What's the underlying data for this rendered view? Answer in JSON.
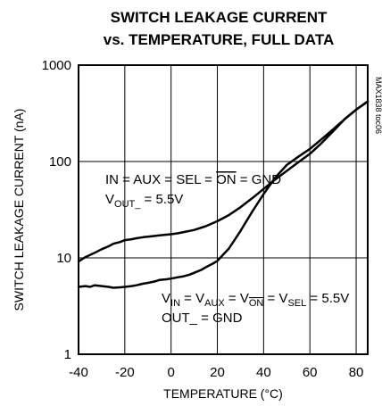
{
  "chart_data": {
    "type": "line",
    "title_line1": "SWITCH LEAKAGE CURRENT",
    "title_line2": "vs. TEMPERATURE, FULL DATA",
    "xlabel": "TEMPERATURE (°C)",
    "ylabel": "SWITCH LEAKAGE CURRENT (nA)",
    "xlim": [
      -40,
      85
    ],
    "ylim": [
      1,
      1000
    ],
    "y_scale": "log",
    "x_ticks": [
      -40,
      -20,
      0,
      20,
      40,
      60,
      80
    ],
    "y_ticks": [
      1,
      10,
      100,
      1000
    ],
    "grid": true,
    "side_label": "MAX1838 toc06",
    "annotations": {
      "upper_line1": "IN = AUX = SEL = ON = GND",
      "upper_line1_overlined": "ON",
      "upper_line2_main": "V",
      "upper_line2_sub": "OUT_",
      "upper_line2_rest": " = 5.5V",
      "lower_line1_parts": [
        {
          "t": "V",
          "sub": "IN"
        },
        {
          "t": " = V",
          "sub": "AUX"
        },
        {
          "t": " = V",
          "sub": "ON",
          "overline": true
        },
        {
          "t": " = V",
          "sub": "SEL"
        },
        {
          "t": " = 5.5V"
        }
      ],
      "lower_line2": "OUT_ = GND"
    },
    "series": [
      {
        "x": [
          -40,
          -37,
          -33,
          -30,
          -27,
          -25,
          -22,
          -20,
          -17,
          -15,
          -12,
          -10,
          -7,
          -5,
          -2,
          0,
          3,
          5,
          10,
          15,
          20,
          25,
          30,
          35,
          40,
          45,
          50,
          55,
          60,
          65,
          70,
          75,
          80,
          85
        ],
        "y": [
          9.2,
          10.2,
          11.3,
          12.3,
          13.2,
          14.0,
          14.6,
          15.3,
          15.6,
          16.0,
          16.4,
          16.6,
          16.9,
          17.1,
          17.4,
          17.6,
          18.0,
          18.4,
          19.5,
          21.3,
          24.0,
          27.8,
          33.5,
          41.5,
          52,
          65,
          80,
          98,
          120,
          155,
          205,
          275,
          345,
          420
        ]
      },
      {
        "x": [
          -40,
          -37,
          -35,
          -33,
          -30,
          -27,
          -25,
          -22,
          -20,
          -17,
          -15,
          -12,
          -10,
          -7,
          -5,
          -2,
          0,
          3,
          5,
          8,
          10,
          13,
          15,
          18,
          20,
          25,
          30,
          35,
          40,
          45,
          50,
          55,
          60,
          65,
          70,
          75,
          80,
          85
        ],
        "y": [
          5.0,
          5.1,
          5.0,
          5.2,
          5.1,
          5.0,
          4.9,
          4.95,
          5.0,
          5.1,
          5.2,
          5.4,
          5.5,
          5.7,
          5.9,
          6.0,
          6.1,
          6.3,
          6.4,
          6.7,
          7.0,
          7.5,
          8.0,
          8.7,
          9.3,
          12.5,
          19,
          30,
          46,
          68,
          92,
          112,
          135,
          170,
          215,
          275,
          345,
          420
        ]
      }
    ]
  }
}
